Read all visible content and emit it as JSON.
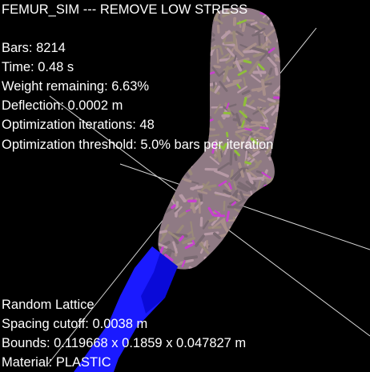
{
  "header": {
    "title": "FEMUR_SIM --- REMOVE LOW STRESS"
  },
  "stats": [
    {
      "key": "bars",
      "text": "Bars: 8214"
    },
    {
      "key": "time",
      "text": "Time: 0.48 s"
    },
    {
      "key": "weight",
      "text": "Weight remaining: 6.63%"
    },
    {
      "key": "deflection",
      "text": "Deflection: 0.0002 m"
    },
    {
      "key": "iterations",
      "text": "Optimization iterations: 48"
    },
    {
      "key": "threshold",
      "text": "Optimization threshold: 5.0% bars per iteration"
    }
  ],
  "lattice": [
    {
      "key": "type",
      "text": "Random Lattice"
    },
    {
      "key": "spacing",
      "text": "Spacing cutoff: 0.0038 m"
    },
    {
      "key": "bounds",
      "text": "Bounds: 0.119668 x 0.1859 x 0.047827 m"
    },
    {
      "key": "material",
      "text": "Material: PLASTIC"
    }
  ],
  "scene": {
    "background_color": "#000000",
    "axis_line_color": "#d8d8d8",
    "bone_base_color": "#8f7a84",
    "strut_colors": [
      "#a88f8a",
      "#9a8a7a",
      "#b79aa6",
      "#7a6a72"
    ],
    "highlight_magenta": "#c83fd0",
    "highlight_green": "#8fbf3a",
    "fixture_color": "#1a1aff",
    "fixture_dark": "#0a0ad8"
  }
}
